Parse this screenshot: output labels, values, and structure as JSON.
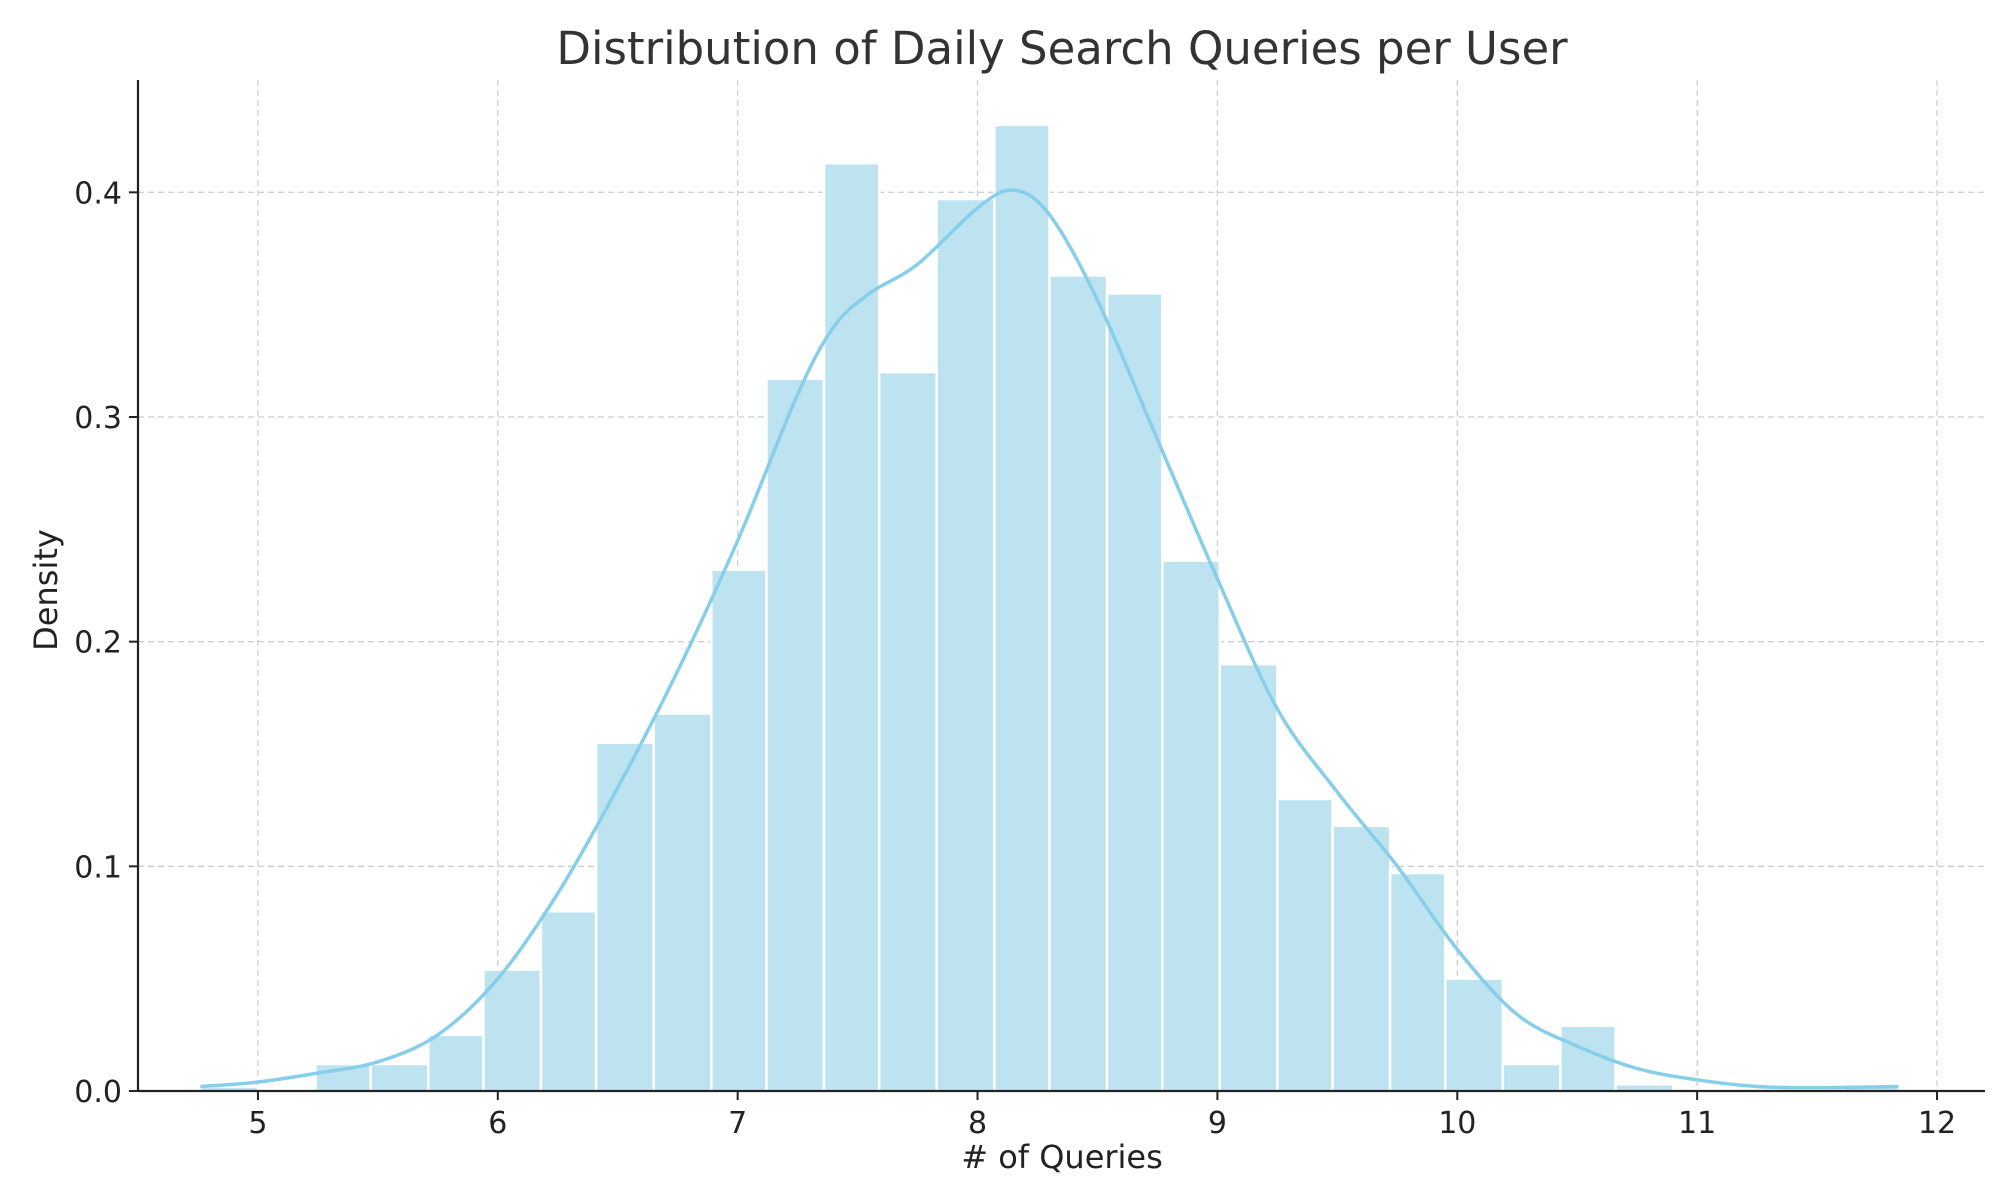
{
  "chart_data": {
    "type": "bar",
    "title": "Distribution of Daily Search Queries per User",
    "xlabel": "# of Queries",
    "ylabel": "Density",
    "xlim": [
      4.5,
      12.2
    ],
    "ylim": [
      0,
      0.45
    ],
    "xticks": [
      "5",
      "6",
      "7",
      "8",
      "9",
      "10",
      "11",
      "12"
    ],
    "yticks": [
      "0.0",
      "0.1",
      "0.2",
      "0.3",
      "0.4"
    ],
    "grid": true,
    "bar_color": "#bde3f0",
    "kde_color": "#87ceeb",
    "bins": [
      {
        "x0": 4.76,
        "x1": 5.0,
        "density": 0.002
      },
      {
        "x0": 5.0,
        "x1": 5.24,
        "density": 0.0
      },
      {
        "x0": 5.24,
        "x1": 5.47,
        "density": 0.012
      },
      {
        "x0": 5.47,
        "x1": 5.71,
        "density": 0.012
      },
      {
        "x0": 5.71,
        "x1": 5.94,
        "density": 0.025
      },
      {
        "x0": 5.94,
        "x1": 6.18,
        "density": 0.054
      },
      {
        "x0": 6.18,
        "x1": 6.41,
        "density": 0.08
      },
      {
        "x0": 6.41,
        "x1": 6.65,
        "density": 0.155
      },
      {
        "x0": 6.65,
        "x1": 6.89,
        "density": 0.168
      },
      {
        "x0": 6.89,
        "x1": 7.12,
        "density": 0.232
      },
      {
        "x0": 7.12,
        "x1": 7.36,
        "density": 0.317
      },
      {
        "x0": 7.36,
        "x1": 7.59,
        "density": 0.413
      },
      {
        "x0": 7.59,
        "x1": 7.83,
        "density": 0.32
      },
      {
        "x0": 7.83,
        "x1": 8.07,
        "density": 0.397
      },
      {
        "x0": 8.07,
        "x1": 8.3,
        "density": 0.43
      },
      {
        "x0": 8.3,
        "x1": 8.54,
        "density": 0.363
      },
      {
        "x0": 8.54,
        "x1": 8.77,
        "density": 0.355
      },
      {
        "x0": 8.77,
        "x1": 9.01,
        "density": 0.236
      },
      {
        "x0": 9.01,
        "x1": 9.25,
        "density": 0.19
      },
      {
        "x0": 9.25,
        "x1": 9.48,
        "density": 0.13
      },
      {
        "x0": 9.48,
        "x1": 9.72,
        "density": 0.118
      },
      {
        "x0": 9.72,
        "x1": 9.95,
        "density": 0.097
      },
      {
        "x0": 9.95,
        "x1": 10.19,
        "density": 0.05
      },
      {
        "x0": 10.19,
        "x1": 10.43,
        "density": 0.012
      },
      {
        "x0": 10.43,
        "x1": 10.66,
        "density": 0.029
      },
      {
        "x0": 10.66,
        "x1": 10.9,
        "density": 0.003
      },
      {
        "x0": 10.9,
        "x1": 11.13,
        "density": 0.0
      },
      {
        "x0": 11.13,
        "x1": 11.37,
        "density": 0.0
      },
      {
        "x0": 11.37,
        "x1": 11.61,
        "density": 0.0
      },
      {
        "x0": 11.61,
        "x1": 11.84,
        "density": 0.003
      }
    ],
    "kde": {
      "x": [
        4.76,
        5.0,
        5.25,
        5.5,
        5.75,
        6.0,
        6.25,
        6.5,
        6.75,
        7.0,
        7.25,
        7.4,
        7.55,
        7.75,
        8.0,
        8.15,
        8.3,
        8.5,
        8.75,
        9.0,
        9.25,
        9.5,
        9.75,
        10.0,
        10.25,
        10.5,
        10.75,
        11.0,
        11.25,
        11.5,
        11.84
      ],
      "y": [
        0.002,
        0.004,
        0.008,
        0.013,
        0.025,
        0.05,
        0.088,
        0.135,
        0.187,
        0.245,
        0.31,
        0.34,
        0.355,
        0.368,
        0.393,
        0.401,
        0.39,
        0.352,
        0.29,
        0.228,
        0.17,
        0.133,
        0.1,
        0.063,
        0.034,
        0.02,
        0.01,
        0.005,
        0.002,
        0.0015,
        0.002
      ]
    }
  }
}
